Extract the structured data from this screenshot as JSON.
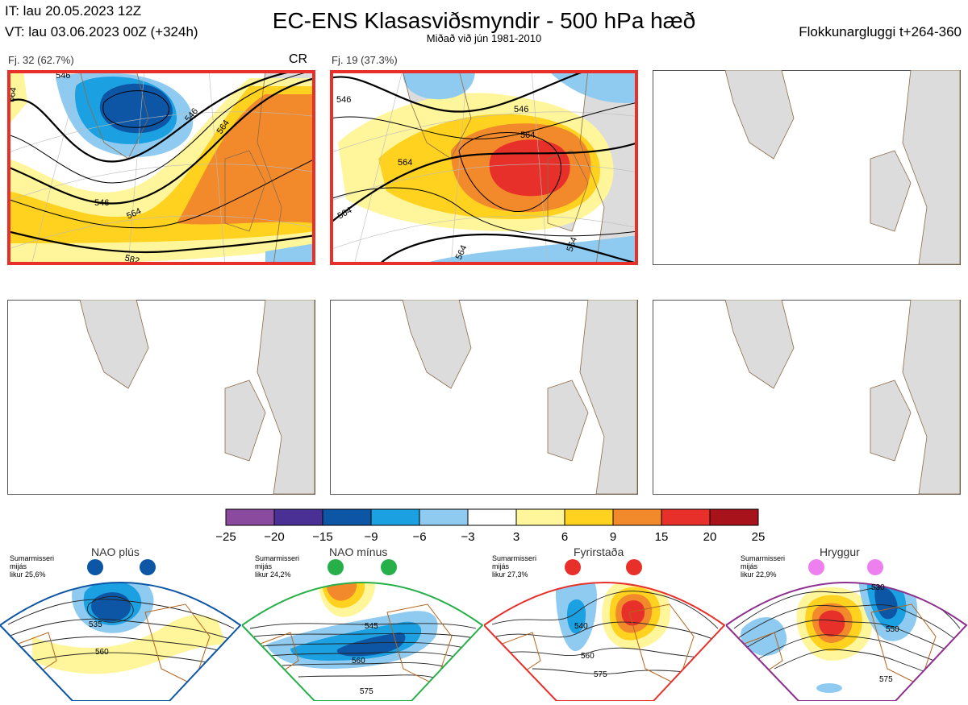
{
  "header": {
    "it": "IT: lau 20.05.2023 12Z",
    "vt": "VT: lau 03.06.2023 00Z  (+324h)",
    "title": "EC-ENS Klasasviðsmyndir - 500 hPa hæð",
    "subtitle": "Miðað við jún 1981-2010",
    "window": "Flokkunargluggi t+264-360"
  },
  "colors": {
    "land": "#dcdcdc",
    "coast": "#8b6b4a",
    "frame_highlight": "#e8302a",
    "frame_plain": "#555555",
    "scale": [
      "#8a4a9e",
      "#4a2f94",
      "#0d56a5",
      "#1ba0e2",
      "#8fcbf0",
      "#ffffff",
      "#fff59a",
      "#ffd21f",
      "#f28a2c",
      "#e8302a",
      "#a8131b"
    ]
  },
  "panels": [
    {
      "label": "Fj. 32 (62.7%)",
      "regime_code": "CR",
      "highlighted": true
    },
    {
      "label": "Fj. 19 (37.3%)",
      "highlighted": true
    },
    {
      "label": "",
      "highlighted": false
    },
    {
      "label": "",
      "highlighted": false
    },
    {
      "label": "",
      "highlighted": false
    },
    {
      "label": "",
      "highlighted": false
    }
  ],
  "contour_labels": {
    "panel1": [
      "546",
      "546",
      "564",
      "546",
      "564",
      "582",
      "564"
    ],
    "panel2": [
      "546",
      "546",
      "564",
      "564",
      "564",
      "564",
      "564"
    ]
  },
  "chart_data": {
    "type": "heatmap",
    "title": "EC-ENS Klasasviðsmyndir - 500 hPa hæð",
    "subtitle": "Miðað við jún 1981-2010",
    "colorbar": {
      "ticks": [
        "−25",
        "−20",
        "−15",
        "−9",
        "−6",
        "−3",
        "3",
        "6",
        "9",
        "15",
        "20",
        "25"
      ],
      "boundaries": [
        -25,
        -20,
        -15,
        -9,
        -6,
        -3,
        3,
        6,
        9,
        15,
        20,
        25
      ]
    },
    "clusters": [
      {
        "name": "Fj. 32",
        "share_percent": 62.7,
        "regime": "CR",
        "anomaly_max": 15,
        "anomaly_min": -15
      },
      {
        "name": "Fj. 19",
        "share_percent": 37.3,
        "anomaly_max": 20,
        "anomaly_min": -9
      }
    ]
  },
  "regimes": [
    {
      "name": "NAO plús",
      "info": "Sumarmisseri\nmijás\nlikur 25,6%",
      "dot_color": "#0d56a5",
      "frame_color": "#0d56a5",
      "contours": [
        "535",
        "560"
      ]
    },
    {
      "name": "NAO mínus",
      "info": "Sumarmisseri\nmijás\nlikur 24,2%",
      "dot_color": "#27b04a",
      "frame_color": "#27b04a",
      "contours": [
        "545",
        "560",
        "575"
      ]
    },
    {
      "name": "Fyrirstaða",
      "info": "Sumarmisseri\nmijás\nlikur 27,3%",
      "dot_color": "#e8302a",
      "frame_color": "#e8302a",
      "contours": [
        "540",
        "560",
        "575"
      ]
    },
    {
      "name": "Hryggur",
      "info": "Sumarmisseri\nmijás\nlikur 22,9%",
      "dot_color": "#ee7fee",
      "frame_color": "#8e2f8e",
      "contours": [
        "530",
        "550",
        "575"
      ]
    }
  ]
}
